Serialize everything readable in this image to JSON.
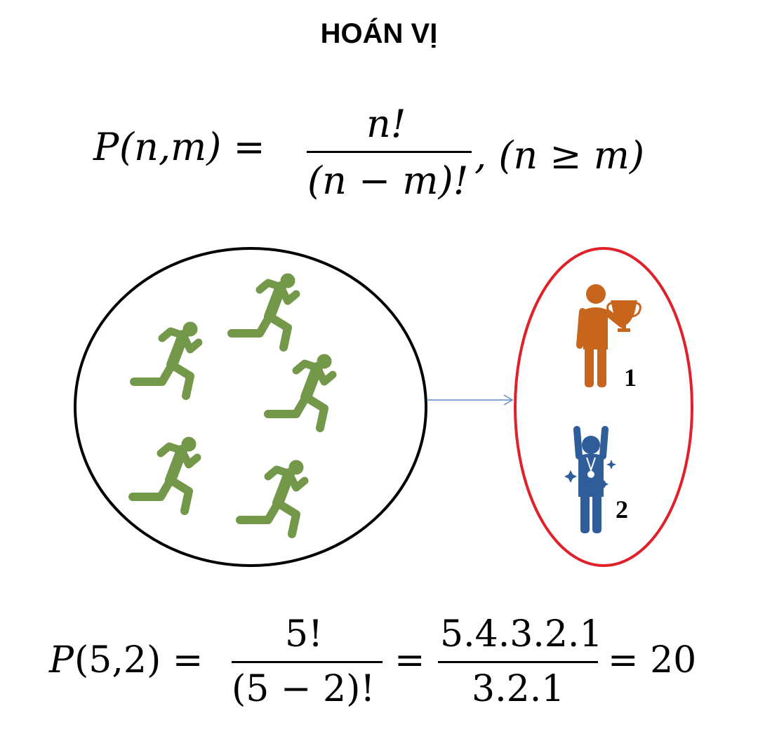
{
  "title": "HOÁN VỊ",
  "formula": {
    "lhs_letter": "P",
    "lhs_args": "(n,m) =",
    "numerator": "n!",
    "denominator": "(n − m)!",
    "condition": ", (n ≥ m)"
  },
  "diagram": {
    "runner_count": 5,
    "runner_color": "#74984a",
    "pool_circle_color": "#000000",
    "selection_oval_color": "#e0212b",
    "arrow_color": "#5b8ac9",
    "winners": [
      {
        "rank": "1",
        "icon": "trophy-winner-icon",
        "color": "#c6651b"
      },
      {
        "rank": "2",
        "icon": "medal-winner-icon",
        "color": "#2e5d9a"
      }
    ]
  },
  "example": {
    "lhs_letter": "P",
    "lhs_args": "(5,2) =",
    "numerator": "5!",
    "denominator": "(5 − 2)!",
    "equals": "=",
    "numerator2": "5.4.3.2.1",
    "denominator2": "3.2.1",
    "result": "= 20"
  }
}
